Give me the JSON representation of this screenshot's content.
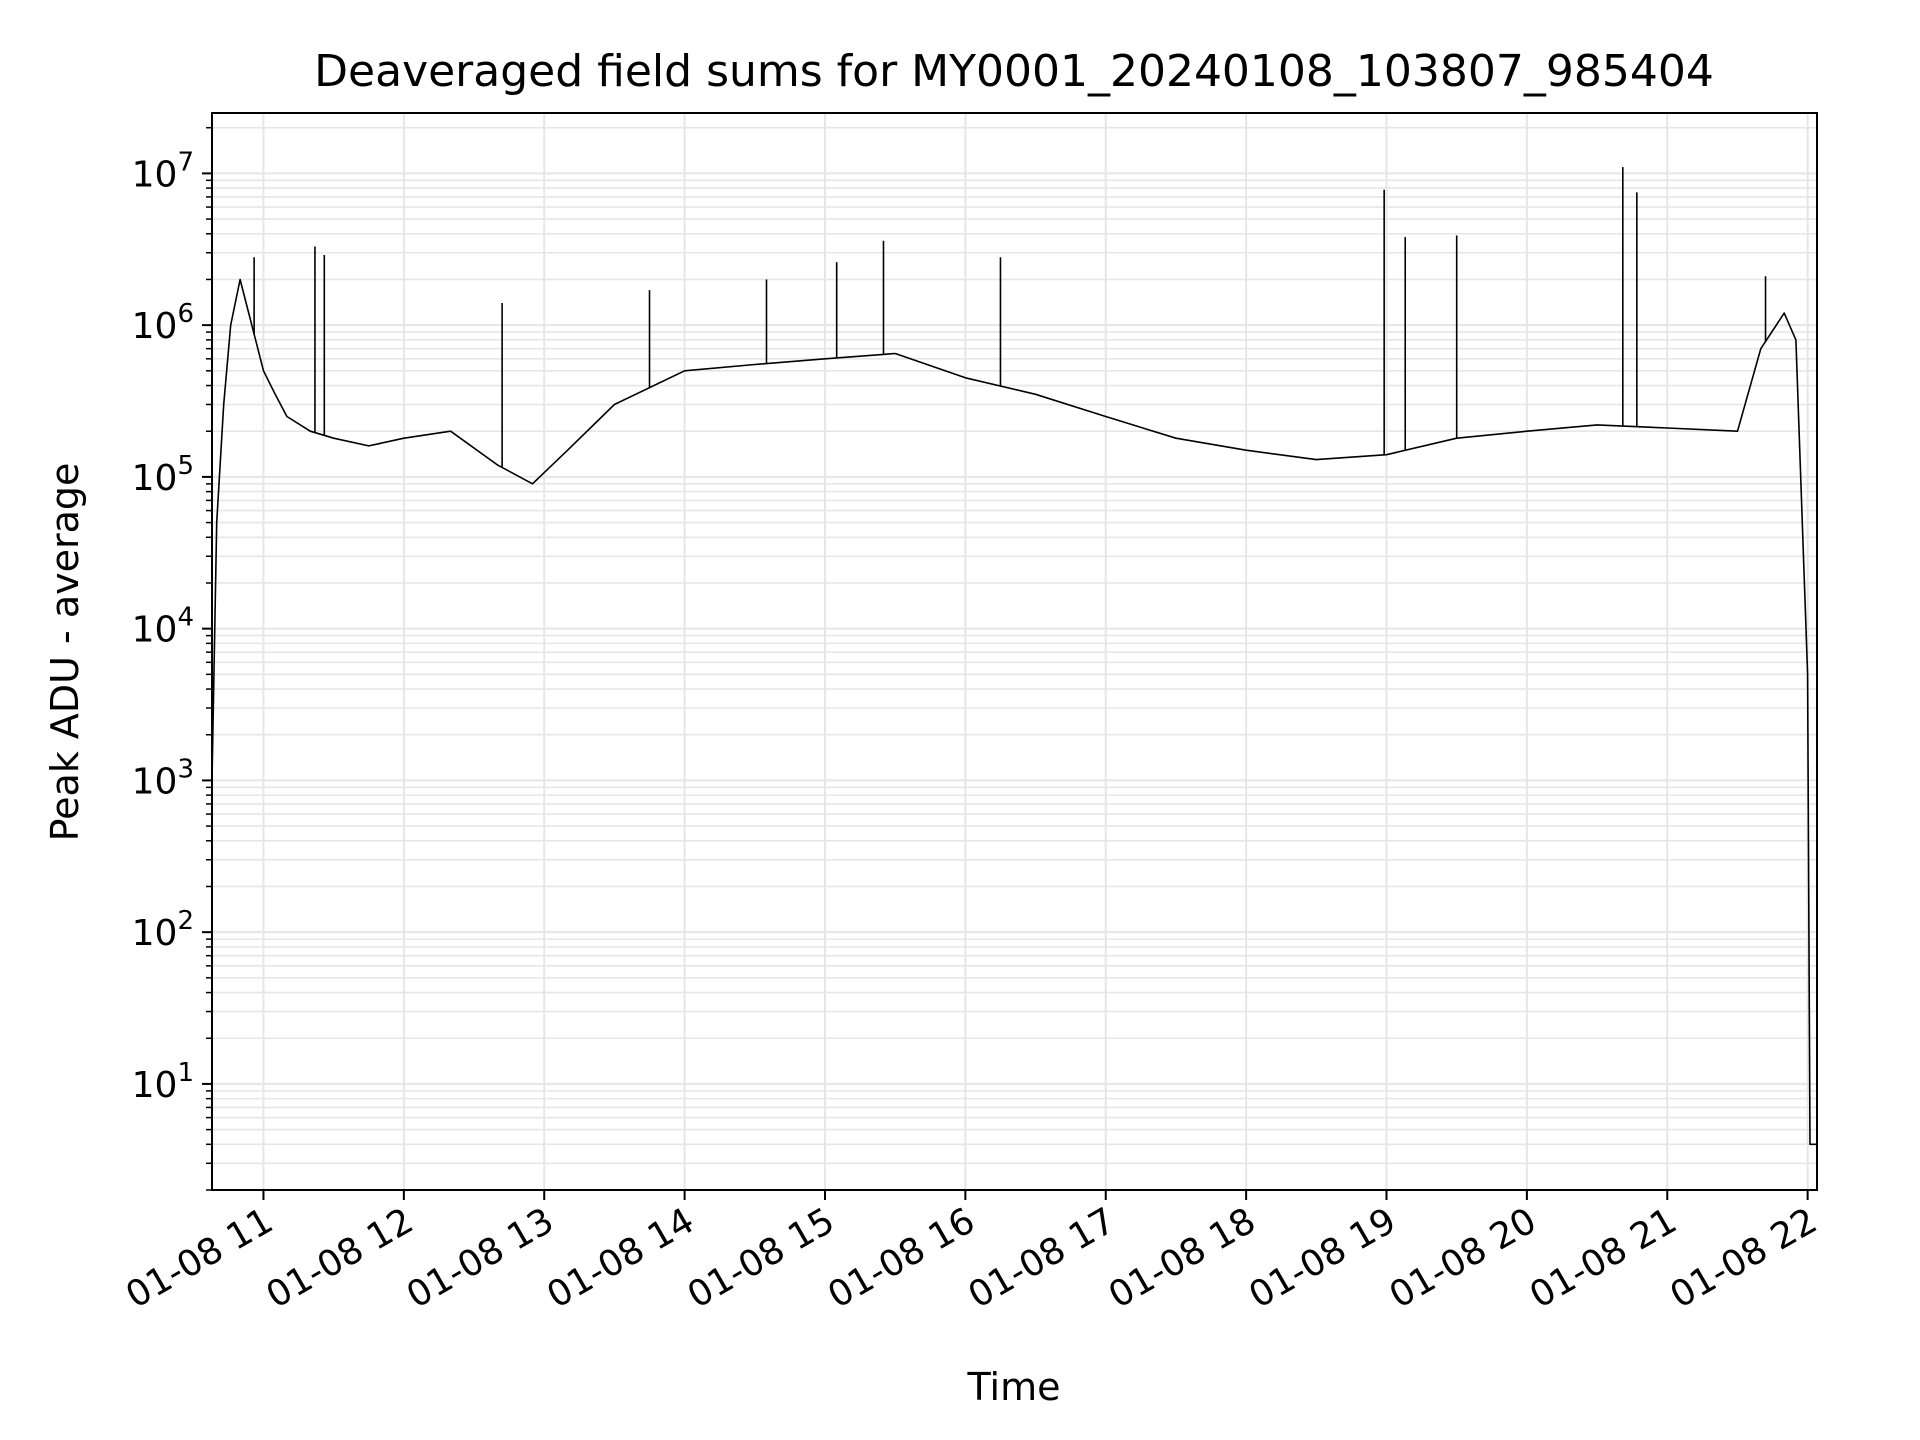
{
  "chart_data": {
    "type": "line",
    "title": "Deaveraged field sums for MY0001_20240108_103807_985404",
    "xlabel": "Time",
    "ylabel": "Peak ADU - average",
    "x_range": [
      "01-08 10:38",
      "01-08 22:04"
    ],
    "x_ticks": [
      "01-08 11",
      "01-08 12",
      "01-08 13",
      "01-08 14",
      "01-08 15",
      "01-08 16",
      "01-08 17",
      "01-08 18",
      "01-08 19",
      "01-08 20",
      "01-08 21",
      "01-08 22"
    ],
    "y_scale": "log",
    "ylim": [
      2,
      25000000
    ],
    "y_ticks": [
      {
        "base": "10",
        "exp": "1"
      },
      {
        "base": "10",
        "exp": "2"
      },
      {
        "base": "10",
        "exp": "3"
      },
      {
        "base": "10",
        "exp": "4"
      },
      {
        "base": "10",
        "exp": "5"
      },
      {
        "base": "10",
        "exp": "6"
      },
      {
        "base": "10",
        "exp": "7"
      }
    ],
    "grid": true,
    "line_color": "#000000",
    "grid_color": "#e6e6e6",
    "series": [
      {
        "x": [
          "01-08 10:38",
          "01-08 10:40",
          "01-08 10:43",
          "01-08 10:46",
          "01-08 10:50",
          "01-08 10:55",
          "01-08 11:00",
          "01-08 11:05",
          "01-08 11:10",
          "01-08 11:20",
          "01-08 11:30",
          "01-08 11:45",
          "01-08 12:00",
          "01-08 12:20",
          "01-08 12:40",
          "01-08 12:55",
          "01-08 13:10",
          "01-08 13:30",
          "01-08 14:00",
          "01-08 14:30",
          "01-08 15:00",
          "01-08 15:30",
          "01-08 16:00",
          "01-08 16:30",
          "01-08 17:00",
          "01-08 17:30",
          "01-08 18:00",
          "01-08 18:30",
          "01-08 19:00",
          "01-08 19:30",
          "01-08 20:00",
          "01-08 20:30",
          "01-08 21:00",
          "01-08 21:30",
          "01-08 21:40",
          "01-08 21:50",
          "01-08 21:55",
          "01-08 22:00",
          "01-08 22:01",
          "01-08 22:02",
          "01-08 22:04"
        ],
        "y": [
          1000,
          50000,
          300000,
          1000000,
          2000000,
          1000000,
          500000,
          350000,
          250000,
          200000,
          180000,
          160000,
          180000,
          200000,
          120000,
          90000,
          150000,
          300000,
          500000,
          550000,
          600000,
          650000,
          450000,
          350000,
          250000,
          180000,
          150000,
          130000,
          140000,
          180000,
          200000,
          220000,
          210000,
          200000,
          700000,
          1200000,
          800000,
          5000,
          4,
          4,
          4
        ]
      }
    ],
    "spikes": [
      {
        "x": "01-08 10:56",
        "y": 2800000
      },
      {
        "x": "01-08 11:22",
        "y": 3300000
      },
      {
        "x": "01-08 11:26",
        "y": 2900000
      },
      {
        "x": "01-08 12:42",
        "y": 1400000
      },
      {
        "x": "01-08 13:45",
        "y": 1700000
      },
      {
        "x": "01-08 14:35",
        "y": 2000000
      },
      {
        "x": "01-08 15:05",
        "y": 2600000
      },
      {
        "x": "01-08 15:25",
        "y": 3600000
      },
      {
        "x": "01-08 16:15",
        "y": 2800000
      },
      {
        "x": "01-08 18:59",
        "y": 7800000
      },
      {
        "x": "01-08 19:08",
        "y": 3800000
      },
      {
        "x": "01-08 19:30",
        "y": 3900000
      },
      {
        "x": "01-08 20:41",
        "y": 11000000
      },
      {
        "x": "01-08 20:47",
        "y": 7500000
      },
      {
        "x": "01-08 21:42",
        "y": 2100000
      }
    ]
  }
}
